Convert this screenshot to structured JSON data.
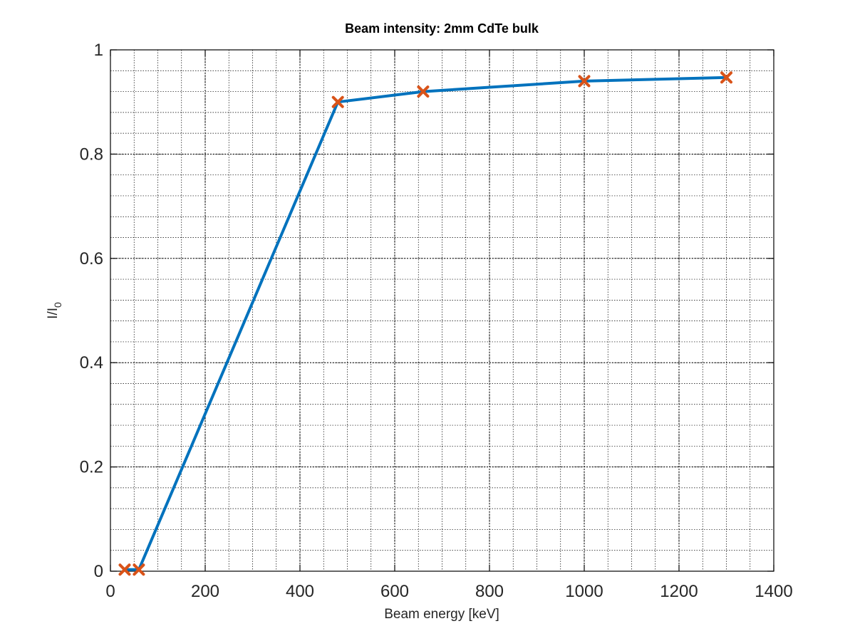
{
  "chart_data": {
    "type": "line",
    "title": "Beam intensity: 2mm CdTe bulk",
    "xlabel": "Beam energy [keV]",
    "ylabel": {
      "main": "I/I",
      "subscript": "0"
    },
    "xlim": [
      0,
      1400
    ],
    "ylim": [
      0,
      1
    ],
    "xticks": [
      0,
      200,
      400,
      600,
      800,
      1000,
      1200,
      1400
    ],
    "xtick_labels": [
      "0",
      "200",
      "400",
      "600",
      "800",
      "1000",
      "1200",
      "1400"
    ],
    "yticks": [
      0,
      0.2,
      0.4,
      0.6,
      0.8,
      1
    ],
    "ytick_labels": [
      "0",
      "0.2",
      "0.4",
      "0.6",
      "0.8",
      "1"
    ],
    "x_minor_step": 50,
    "y_minor_step": 0.04,
    "grid": true,
    "legend": "none",
    "series": [
      {
        "x": [
          30,
          60,
          480,
          660,
          1000,
          1300
        ],
        "values": [
          0.003,
          0.003,
          0.9,
          0.92,
          0.94,
          0.947
        ],
        "line_color": "#0072bd",
        "marker": "x",
        "marker_color": "#d95319"
      }
    ]
  }
}
